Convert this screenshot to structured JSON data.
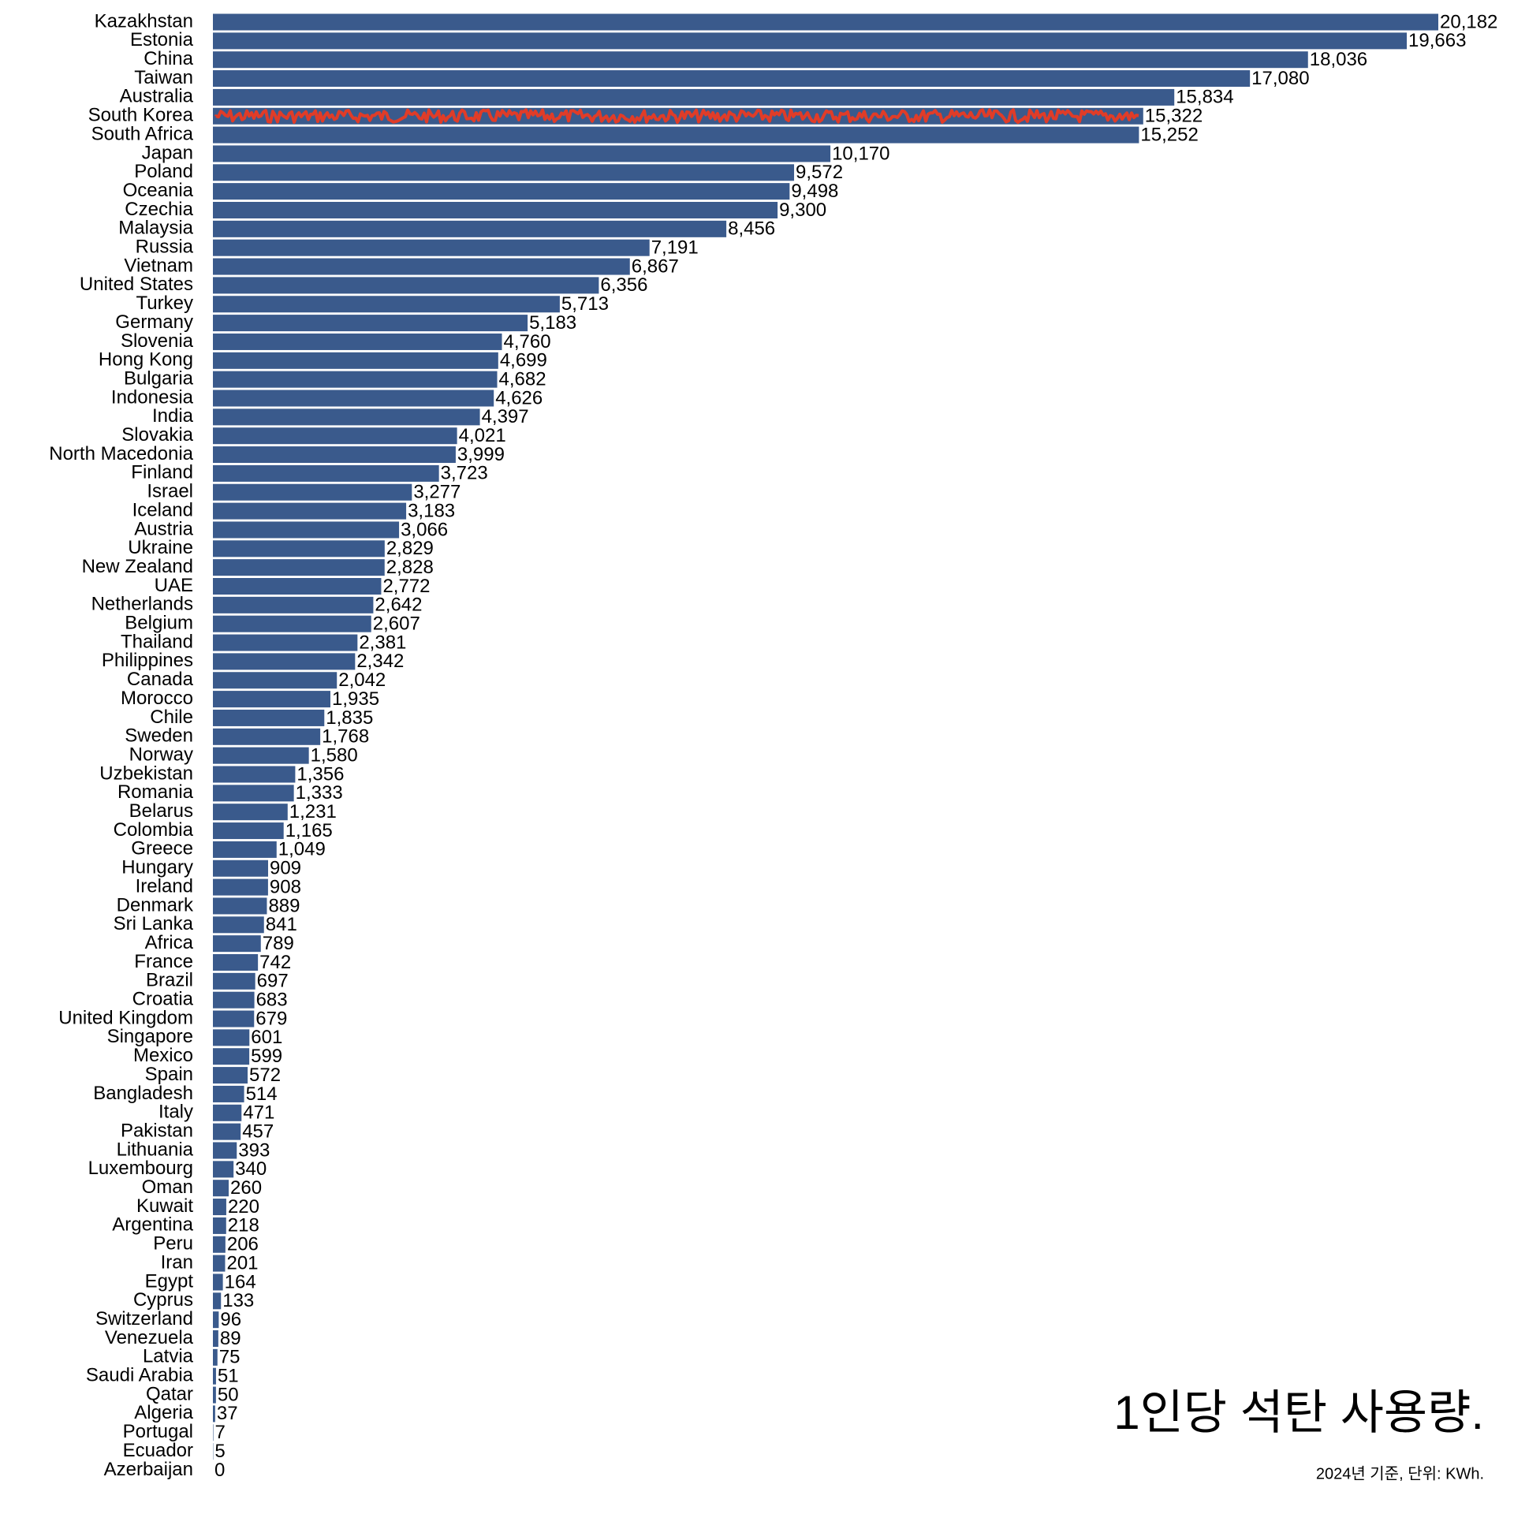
{
  "chart_data": {
    "type": "bar",
    "orientation": "horizontal",
    "title": "1인당 석탄 사용량.",
    "subtitle": "2024년 기준, 단위: KWh.",
    "color": "#3a5a8c",
    "highlight_category": "South Korea",
    "highlight_color": "#e03c28",
    "categories": [
      "Kazakhstan",
      "Estonia",
      "China",
      "Taiwan",
      "Australia",
      "South Korea",
      "South Africa",
      "Japan",
      "Poland",
      "Oceania",
      "Czechia",
      "Malaysia",
      "Russia",
      "Vietnam",
      "United States",
      "Turkey",
      "Germany",
      "Slovenia",
      "Hong Kong",
      "Bulgaria",
      "Indonesia",
      "India",
      "Slovakia",
      "North Macedonia",
      "Finland",
      "Israel",
      "Iceland",
      "Austria",
      "Ukraine",
      "New Zealand",
      "UAE",
      "Netherlands",
      "Belgium",
      "Thailand",
      "Philippines",
      "Canada",
      "Morocco",
      "Chile",
      "Sweden",
      "Norway",
      "Uzbekistan",
      "Romania",
      "Belarus",
      "Colombia",
      "Greece",
      "Hungary",
      "Ireland",
      "Denmark",
      "Sri Lanka",
      "Africa",
      "France",
      "Brazil",
      "Croatia",
      "United Kingdom",
      "Singapore",
      "Mexico",
      "Spain",
      "Bangladesh",
      "Italy",
      "Pakistan",
      "Lithuania",
      "Luxembourg",
      "Oman",
      "Kuwait",
      "Argentina",
      "Peru",
      "Iran",
      "Egypt",
      "Cyprus",
      "Switzerland",
      "Venezuela",
      "Latvia",
      "Saudi Arabia",
      "Qatar",
      "Algeria",
      "Portugal",
      "Ecuador",
      "Azerbaijan"
    ],
    "values": [
      20182,
      19663,
      18036,
      17080,
      15834,
      15322,
      15252,
      10170,
      9572,
      9498,
      9300,
      8456,
      7191,
      6867,
      6356,
      5713,
      5183,
      4760,
      4699,
      4682,
      4626,
      4397,
      4021,
      3999,
      3723,
      3277,
      3183,
      3066,
      2829,
      2828,
      2772,
      2642,
      2607,
      2381,
      2342,
      2042,
      1935,
      1835,
      1768,
      1580,
      1356,
      1333,
      1231,
      1165,
      1049,
      909,
      908,
      889,
      841,
      789,
      742,
      697,
      683,
      679,
      601,
      599,
      572,
      514,
      471,
      457,
      393,
      340,
      260,
      220,
      218,
      206,
      201,
      164,
      133,
      96,
      89,
      75,
      51,
      50,
      37,
      7,
      5,
      0
    ],
    "value_labels": [
      "20,182",
      "19,663",
      "18,036",
      "17,080",
      "15,834",
      "15,322",
      "15,252",
      "10,170",
      "9,572",
      "9,498",
      "9,300",
      "8,456",
      "7,191",
      "6,867",
      "6,356",
      "5,713",
      "5,183",
      "4,760",
      "4,699",
      "4,682",
      "4,626",
      "4,397",
      "4,021",
      "3,999",
      "3,723",
      "3,277",
      "3,183",
      "3,066",
      "2,829",
      "2,828",
      "2,772",
      "2,642",
      "2,607",
      "2,381",
      "2,342",
      "2,042",
      "1,935",
      "1,835",
      "1,768",
      "1,580",
      "1,356",
      "1,333",
      "1,231",
      "1,165",
      "1,049",
      "909",
      "908",
      "889",
      "841",
      "789",
      "742",
      "697",
      "683",
      "679",
      "601",
      "599",
      "572",
      "514",
      "471",
      "457",
      "393",
      "340",
      "260",
      "220",
      "218",
      "206",
      "201",
      "164",
      "133",
      "96",
      "89",
      "75",
      "51",
      "50",
      "37",
      "7",
      "5",
      "0"
    ]
  }
}
